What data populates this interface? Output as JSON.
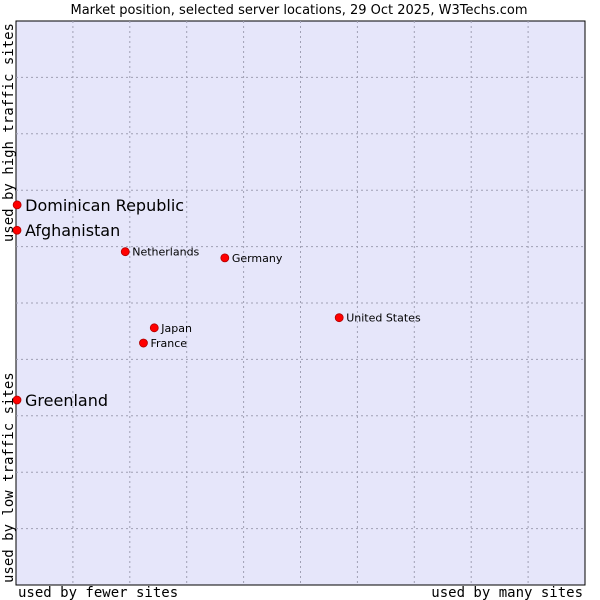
{
  "chart_data": {
    "type": "scatter",
    "title": "Market position, selected server locations, 29 Oct 2025, W3Techs.com",
    "xlabel_left": "used by fewer sites",
    "xlabel_right": "used by many sites",
    "ylabel_bottom": "used by low traffic sites",
    "ylabel_top": "used by high traffic sites",
    "xlim": [
      0,
      100
    ],
    "ylim": [
      0,
      100
    ],
    "grid": true,
    "colors": {
      "plot_bg": "#e6e6fa",
      "grid": "#a0a0b4",
      "point": "#ff0000",
      "border": "#000000"
    },
    "points": [
      {
        "name": "Dominican Republic",
        "x": 0.2,
        "y": 67.4,
        "highlight": true
      },
      {
        "name": "Afghanistan",
        "x": 0.0,
        "y": 62.9,
        "highlight": true
      },
      {
        "name": "Netherlands",
        "x": 19.2,
        "y": 59.1,
        "highlight": false
      },
      {
        "name": "Germany",
        "x": 36.7,
        "y": 58.0,
        "highlight": false
      },
      {
        "name": "United States",
        "x": 56.8,
        "y": 47.4,
        "highlight": false
      },
      {
        "name": "Japan",
        "x": 24.3,
        "y": 45.6,
        "highlight": false
      },
      {
        "name": "France",
        "x": 22.4,
        "y": 42.9,
        "highlight": false
      },
      {
        "name": "Greenland",
        "x": 0.0,
        "y": 32.8,
        "highlight": true
      }
    ]
  }
}
